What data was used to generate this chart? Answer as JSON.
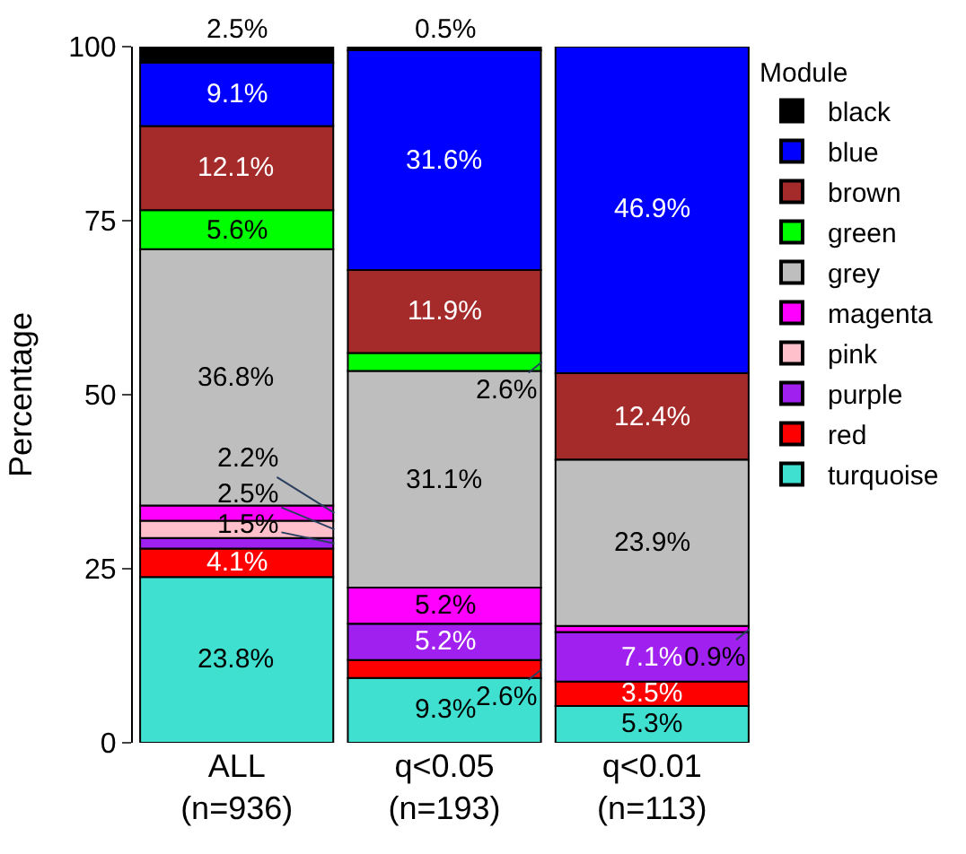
{
  "chart_data": {
    "type": "bar",
    "stacked": true,
    "ylabel": "Percentage",
    "legend_title": "Module",
    "legend": "top right",
    "categories": [
      "ALL\n(n=936)",
      "q<0.05\n(n=193)",
      "q<0.01\n(n=113)"
    ],
    "ylim": [
      0,
      100
    ],
    "yticks": [
      0,
      25,
      50,
      75,
      100
    ],
    "series": [
      {
        "name": "turquoise",
        "color": "#40e0d0",
        "values": [
          23.8,
          9.3,
          5.3
        ],
        "value_labels": [
          "23.8%",
          "9.3%",
          "5.3%"
        ]
      },
      {
        "name": "red",
        "color": "#ff0000",
        "values": [
          4.1,
          2.6,
          3.5
        ],
        "value_labels": [
          "4.1%",
          "2.6%",
          "3.5%"
        ]
      },
      {
        "name": "purple",
        "color": "#a020f0",
        "values": [
          1.5,
          5.2,
          7.1
        ],
        "value_labels": [
          "1.5%",
          "5.2%",
          "7.1%"
        ]
      },
      {
        "name": "pink",
        "color": "#ffc0cb",
        "values": [
          2.5,
          0,
          0
        ],
        "value_labels": [
          "2.5%",
          null,
          null
        ]
      },
      {
        "name": "magenta",
        "color": "#ff00ff",
        "values": [
          2.2,
          5.2,
          0.9
        ],
        "value_labels": [
          "2.2%",
          "5.2%",
          "0.9%"
        ]
      },
      {
        "name": "grey",
        "color": "#bebebe",
        "values": [
          36.8,
          31.1,
          23.9
        ],
        "value_labels": [
          "36.8%",
          "31.1%",
          "23.9%"
        ]
      },
      {
        "name": "green",
        "color": "#00ff00",
        "values": [
          5.6,
          2.6,
          0
        ],
        "value_labels": [
          "5.6%",
          "2.6%",
          null
        ]
      },
      {
        "name": "brown",
        "color": "#a52a2a",
        "values": [
          12.1,
          11.9,
          12.4
        ],
        "value_labels": [
          "12.1%",
          "11.9%",
          "12.4%"
        ]
      },
      {
        "name": "blue",
        "color": "#0000ff",
        "values": [
          9.1,
          31.6,
          46.9
        ],
        "value_labels": [
          "9.1%",
          "31.6%",
          "46.9%"
        ]
      },
      {
        "name": "black",
        "color": "#000000",
        "values": [
          2.5,
          0.5,
          0
        ],
        "value_labels": [
          "2.5%",
          "0.5%",
          null
        ]
      }
    ]
  }
}
